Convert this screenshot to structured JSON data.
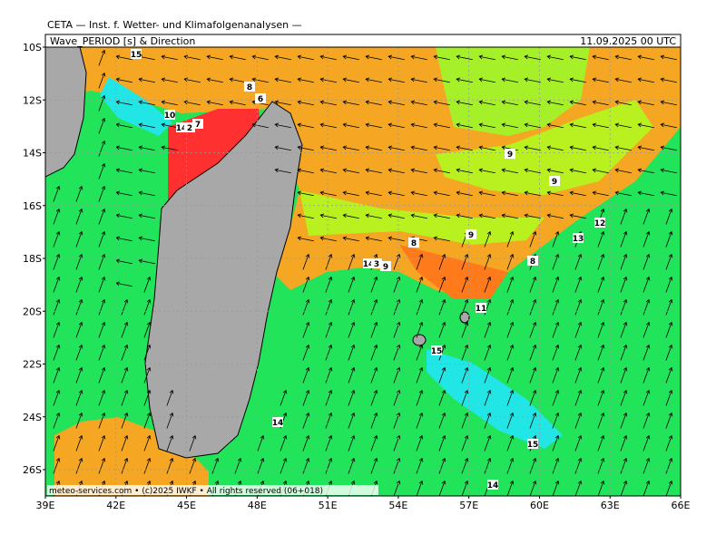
{
  "header": {
    "source": "CETA — Inst. f. Wetter- und Klimafolgenanalysen —",
    "title": "Wave_PERIOD [s] & Direction",
    "date": "11.09.2025 00 UTC"
  },
  "axes": {
    "lat_labels": [
      "10S",
      "12S",
      "14S",
      "16S",
      "18S",
      "20S",
      "22S",
      "24S",
      "26S"
    ],
    "lon_labels": [
      "39E",
      "42E",
      "45E",
      "48E",
      "51E",
      "54E",
      "57E",
      "60E",
      "63E",
      "66E"
    ]
  },
  "footer": "meteo-services.com • (c)2025 IWKF • All rights reserved (06+018)",
  "contour_labels": [
    "15",
    "8",
    "6",
    "10",
    "14",
    "2",
    "7",
    "9",
    "9",
    "12",
    "13",
    "9",
    "8",
    "14",
    "3",
    "9",
    "8",
    "11",
    "15",
    "14",
    "15",
    "14"
  ]
}
